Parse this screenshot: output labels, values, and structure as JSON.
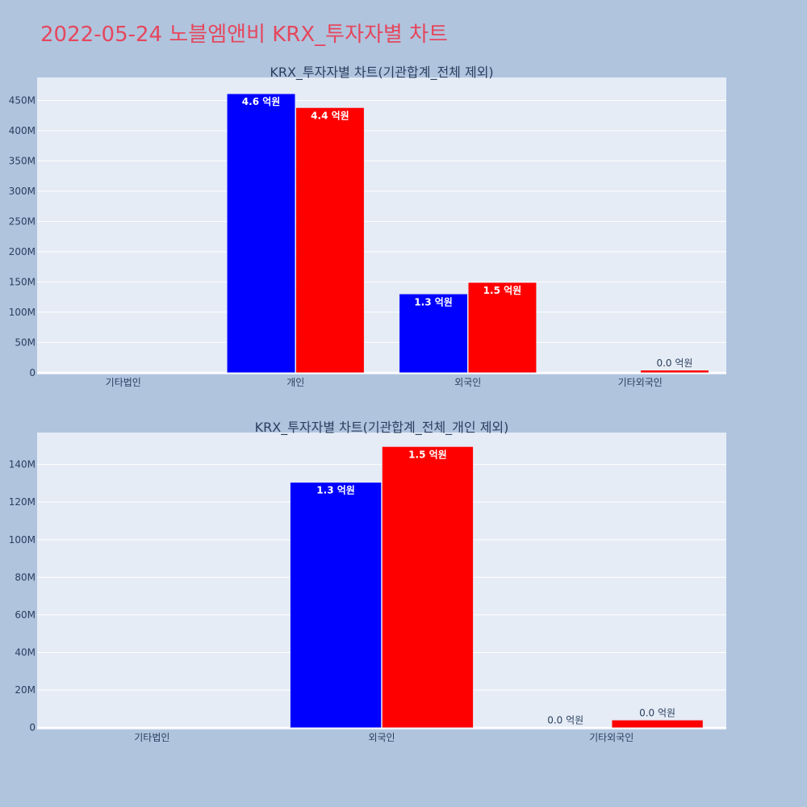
{
  "page_title": "2022-05-24 노블엠앤비 KRX_투자자별 차트",
  "colors": {
    "background": "#b0c4de",
    "plot_bg": "#e5ecf6",
    "title": "#e5475d",
    "buy": "#0000ff",
    "sell": "#ff0000",
    "grid": "#ffffff",
    "text": "#2a3f5f"
  },
  "chart_data": [
    {
      "type": "bar",
      "title": "KRX_투자자별 차트(기관합계_전체 제외)",
      "categories": [
        "기타법인",
        "개인",
        "외국인",
        "기타외국인"
      ],
      "series": [
        {
          "color": "#0000ff",
          "values": [
            0,
            461000000,
            130000000,
            0
          ],
          "labels": [
            "",
            "4.6 억원",
            "1.3 억원",
            ""
          ]
        },
        {
          "color": "#ff0000",
          "values": [
            0,
            438000000,
            149000000,
            4000000
          ],
          "labels": [
            "",
            "4.4 억원",
            "1.5 억원",
            "0.0 억원"
          ]
        }
      ],
      "yticks": [
        "0",
        "50M",
        "100M",
        "150M",
        "200M",
        "250M",
        "300M",
        "350M",
        "400M",
        "450M"
      ],
      "ytick_values": [
        0,
        50000000,
        100000000,
        150000000,
        200000000,
        250000000,
        300000000,
        350000000,
        400000000,
        450000000
      ],
      "ylim": [
        -3000000,
        488000000
      ],
      "grid": true,
      "legend": "none"
    },
    {
      "type": "bar",
      "title": "KRX_투자자별 차트(기관합계_전체_개인 제외)",
      "categories": [
        "기타법인",
        "외국인",
        "기타외국인"
      ],
      "series": [
        {
          "color": "#0000ff",
          "values": [
            0,
            130500000,
            0
          ],
          "labels": [
            "",
            "1.3 억원",
            "0.0 억원"
          ]
        },
        {
          "color": "#ff0000",
          "values": [
            0,
            149500000,
            4000000
          ],
          "labels": [
            "",
            "1.5 억원",
            "0.0 억원"
          ]
        }
      ],
      "yticks": [
        "0",
        "20M",
        "40M",
        "60M",
        "80M",
        "100M",
        "120M",
        "140M"
      ],
      "ytick_values": [
        0,
        20000000,
        40000000,
        60000000,
        80000000,
        100000000,
        120000000,
        140000000
      ],
      "ylim": [
        -1000000,
        157000000
      ],
      "grid": true,
      "legend": "none"
    }
  ]
}
